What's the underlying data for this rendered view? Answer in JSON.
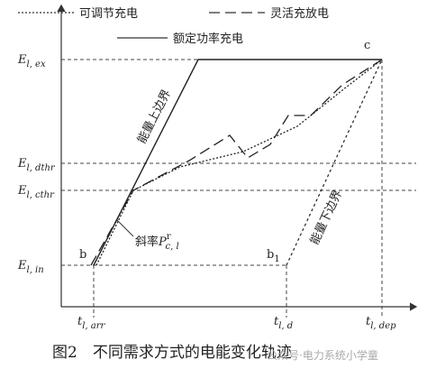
{
  "legend": [
    "可调节充电",
    "灵活充放电",
    "额定功率充电"
  ],
  "y_labels": [
    {
      "main": "E",
      "sub": "l, ex"
    },
    {
      "main": "E",
      "sub": "l, dthr"
    },
    {
      "main": "E",
      "sub": "l, cthr"
    },
    {
      "main": "E",
      "sub": "l, in"
    }
  ],
  "x_labels": [
    {
      "main": "t",
      "sub": "l, arr"
    },
    {
      "main": "t",
      "sub": "l, d"
    },
    {
      "main": "t",
      "sub": "l, dep"
    }
  ],
  "annotations": {
    "upper_bound": "能量上边界",
    "lower_bound": "能量下边界",
    "slope": {
      "text": "斜率",
      "symbol": "P",
      "sup": "r",
      "sub": "c, l"
    },
    "b": "b",
    "b1": {
      "main": "b",
      "sub": "1"
    },
    "c": "c"
  },
  "caption": "图2　不同需求方式的电能变化轨迹",
  "watermark": "公众号·电力系统小学童"
}
